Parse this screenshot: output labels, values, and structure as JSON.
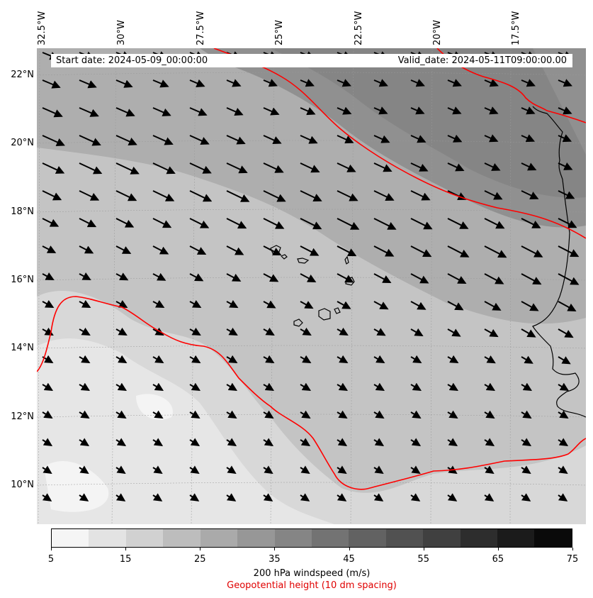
{
  "map": {
    "start_date": "Start date: 2024-05-09_00:00:00",
    "valid_date": "Valid_date: 2024-05-11T09:00:00.00",
    "lon_labels": [
      "32.5°W",
      "30°W",
      "27.5°W",
      "25°W",
      "22.5°W",
      "20°W",
      "17.5°W"
    ],
    "lat_labels": [
      "22°N",
      "20°N",
      "18°N",
      "16°N",
      "14°N",
      "12°N",
      "10°N"
    ],
    "extent": {
      "lon_min": -33.0,
      "lon_max": -15.5,
      "lat_min": 8.8,
      "lat_max": 22.8
    },
    "wind_direction": "northwesterly (arrows point to the southeast)",
    "contour_color": "#ff0000",
    "coastline_color": "#000000",
    "features": [
      "West African coast (Mauritania / Senegal)",
      "Cape Verde islands"
    ]
  },
  "colorbar": {
    "levels": [
      5,
      10,
      15,
      20,
      25,
      30,
      35,
      40,
      45,
      50,
      55,
      60,
      65,
      70,
      75
    ],
    "tick_labels": [
      "5",
      "15",
      "25",
      "35",
      "45",
      "55",
      "65",
      "75"
    ],
    "colors": [
      "#f5f5f5",
      "#e3e3e3",
      "#d1d1d1",
      "#bdbdbd",
      "#aaaaaa",
      "#979797",
      "#858585",
      "#737373",
      "#626262",
      "#515151",
      "#404040",
      "#2d2d2d",
      "#1b1b1b",
      "#0a0a0a"
    ],
    "label": "200 hPa windspeed (m/s)",
    "geo_label": "Geopotential height (10 dm spacing)"
  }
}
